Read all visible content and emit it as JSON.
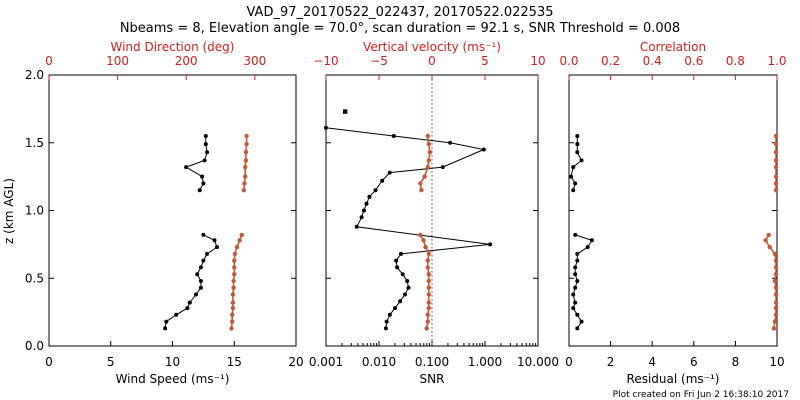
{
  "colors": {
    "primary": "#000000",
    "secondary": "#cc1f1f",
    "profile": "#c05a3a"
  },
  "title": {
    "line1": "VAD_97_20170522_022437, 20170522.022535",
    "line2": "Nbeams = 8, Elevation angle = 70.0°, scan duration = 92.1 s, SNR Threshold = 0.008"
  },
  "footer": "Plot created on Fri Jun  2 16:38:10 2017",
  "ylabel": "z (km AGL)",
  "chart_data": [
    {
      "type": "line",
      "panel": "wind",
      "ylim": [
        0,
        2.0
      ],
      "yticks": [
        "0.0",
        "0.5",
        "1.0",
        "1.5",
        "2.0"
      ],
      "bottom_axis": {
        "label": "Wind Speed (ms⁻¹)",
        "xlim": [
          0,
          20
        ],
        "ticks": [
          "0",
          "5",
          "10",
          "15",
          "20"
        ]
      },
      "top_axis": {
        "label": "Wind Direction (deg)",
        "xlim": [
          0,
          360
        ],
        "ticks": [
          "0",
          "100",
          "200",
          "300"
        ]
      },
      "series": [
        {
          "name": "Wind Speed",
          "axis": "bottom",
          "color": "#000000",
          "segments": [
            {
              "x": [
                9.4,
                9.5,
                10.3,
                11.2,
                11.4,
                11.9,
                12.3,
                12.3,
                12.0,
                12.3,
                12.5,
                12.8,
                13.6,
                13.4,
                12.5
              ],
              "y": [
                0.13,
                0.18,
                0.23,
                0.28,
                0.32,
                0.38,
                0.43,
                0.48,
                0.53,
                0.58,
                0.63,
                0.68,
                0.73,
                0.78,
                0.82
              ]
            },
            {
              "x": [
                12.2,
                12.5,
                12.4,
                11.1,
                12.6,
                12.8,
                12.7,
                12.7
              ],
              "y": [
                1.15,
                1.2,
                1.25,
                1.32,
                1.37,
                1.43,
                1.49,
                1.55
              ]
            }
          ]
        },
        {
          "name": "Wind Direction",
          "axis": "top",
          "color": "#c05a3a",
          "segments": [
            {
              "x": [
                266,
                267,
                267,
                268,
                268,
                268,
                269,
                269,
                270,
                270,
                270,
                271,
                274,
                278,
                281
              ],
              "y": [
                0.13,
                0.18,
                0.23,
                0.28,
                0.32,
                0.38,
                0.43,
                0.48,
                0.53,
                0.58,
                0.63,
                0.68,
                0.73,
                0.78,
                0.82
              ]
            },
            {
              "x": [
                284,
                285,
                286,
                286,
                287,
                287,
                288,
                288
              ],
              "y": [
                1.15,
                1.2,
                1.25,
                1.32,
                1.37,
                1.43,
                1.49,
                1.55
              ]
            }
          ]
        }
      ]
    },
    {
      "type": "line",
      "panel": "snr",
      "ylim": [
        0,
        2.0
      ],
      "bottom_axis": {
        "label": "SNR",
        "scale": "log",
        "xlim": [
          0.001,
          10
        ],
        "ticks": [
          "0.001",
          "0.010",
          "0.100",
          "1.000",
          "10.000"
        ]
      },
      "top_axis": {
        "label": "Vertical velocity (ms⁻¹)",
        "xlim": [
          -10,
          10
        ],
        "ticks": [
          "−10",
          "−5",
          "0",
          "5",
          "10"
        ]
      },
      "reference_line": {
        "axis": "top",
        "value": 0
      },
      "series": [
        {
          "name": "SNR",
          "axis": "bottom",
          "color": "#000000",
          "points": [
            {
              "x": 0.0135,
              "y": 0.13
            },
            {
              "x": 0.014,
              "y": 0.18
            },
            {
              "x": 0.016,
              "y": 0.23
            },
            {
              "x": 0.02,
              "y": 0.28
            },
            {
              "x": 0.025,
              "y": 0.33
            },
            {
              "x": 0.031,
              "y": 0.38
            },
            {
              "x": 0.036,
              "y": 0.43
            },
            {
              "x": 0.034,
              "y": 0.48
            },
            {
              "x": 0.028,
              "y": 0.53
            },
            {
              "x": 0.022,
              "y": 0.58
            },
            {
              "x": 0.021,
              "y": 0.63
            },
            {
              "x": 0.026,
              "y": 0.68
            },
            {
              "x": 1.25,
              "y": 0.75
            },
            {
              "x": 0.0038,
              "y": 0.88
            },
            {
              "x": 0.0047,
              "y": 0.95
            },
            {
              "x": 0.0052,
              "y": 1.0
            },
            {
              "x": 0.0058,
              "y": 1.05
            },
            {
              "x": 0.0066,
              "y": 1.1
            },
            {
              "x": 0.0086,
              "y": 1.15
            },
            {
              "x": 0.0115,
              "y": 1.22
            },
            {
              "x": 0.016,
              "y": 1.28
            },
            {
              "x": 0.16,
              "y": 1.32
            },
            {
              "x": 0.95,
              "y": 1.45
            },
            {
              "x": 0.22,
              "y": 1.5
            },
            {
              "x": 0.019,
              "y": 1.55
            },
            {
              "x": 0.001,
              "y": 1.61
            }
          ],
          "isolated_point": {
            "x": 0.0023,
            "y": 1.73
          }
        },
        {
          "name": "Vertical velocity",
          "axis": "top",
          "color": "#c05a3a",
          "segments": [
            {
              "x": [
                -0.5,
                -0.4,
                -0.4,
                -0.3,
                -0.3,
                -0.3,
                -0.3,
                -0.3,
                -0.3,
                -0.4,
                -0.4,
                -0.3,
                -0.6,
                -0.8,
                -1.1
              ],
              "y": [
                0.13,
                0.18,
                0.23,
                0.28,
                0.32,
                0.38,
                0.43,
                0.48,
                0.53,
                0.58,
                0.63,
                0.68,
                0.73,
                0.78,
                0.82
              ]
            },
            {
              "x": [
                -1.0,
                -1.1,
                -0.7,
                -0.4,
                -0.3,
                -0.2,
                -0.3,
                -0.4
              ],
              "y": [
                1.15,
                1.2,
                1.25,
                1.32,
                1.37,
                1.43,
                1.49,
                1.55
              ]
            }
          ]
        }
      ]
    },
    {
      "type": "line",
      "panel": "residual",
      "ylim": [
        0,
        2.0
      ],
      "bottom_axis": {
        "label": "Residual (ms⁻¹)",
        "xlim": [
          0,
          10
        ],
        "ticks": [
          "0",
          "2",
          "4",
          "6",
          "8",
          "10"
        ]
      },
      "top_axis": {
        "label": "Correlation",
        "xlim": [
          0,
          1.0
        ],
        "ticks": [
          "0.0",
          "0.2",
          "0.4",
          "0.6",
          "0.8",
          "1.0"
        ]
      },
      "series": [
        {
          "name": "Residual",
          "axis": "bottom",
          "color": "#000000",
          "segments": [
            {
              "x": [
                0.4,
                0.6,
                0.4,
                0.2,
                0.3,
                0.2,
                0.3,
                0.4,
                0.3,
                0.3,
                0.4,
                0.4,
                0.9,
                1.1,
                0.3
              ],
              "y": [
                0.13,
                0.18,
                0.23,
                0.28,
                0.32,
                0.38,
                0.43,
                0.48,
                0.53,
                0.58,
                0.63,
                0.68,
                0.73,
                0.78,
                0.82
              ]
            },
            {
              "x": [
                0.2,
                0.3,
                0.1,
                0.2,
                0.6,
                0.4,
                0.4,
                0.4
              ],
              "y": [
                1.15,
                1.2,
                1.25,
                1.32,
                1.37,
                1.43,
                1.49,
                1.55
              ]
            }
          ]
        },
        {
          "name": "Correlation",
          "axis": "top",
          "color": "#c05a3a",
          "segments": [
            {
              "x": [
                0.985,
                0.99,
                0.995,
                0.995,
                0.995,
                0.995,
                0.995,
                0.99,
                0.995,
                0.995,
                0.995,
                0.99,
                0.965,
                0.945,
                0.96
              ],
              "y": [
                0.13,
                0.18,
                0.23,
                0.28,
                0.32,
                0.38,
                0.43,
                0.48,
                0.53,
                0.58,
                0.63,
                0.68,
                0.73,
                0.78,
                0.82
              ]
            },
            {
              "x": [
                0.995,
                0.995,
                0.995,
                0.995,
                0.995,
                0.995,
                0.995,
                0.995
              ],
              "y": [
                1.15,
                1.2,
                1.25,
                1.32,
                1.37,
                1.43,
                1.49,
                1.55
              ]
            }
          ]
        }
      ]
    }
  ]
}
